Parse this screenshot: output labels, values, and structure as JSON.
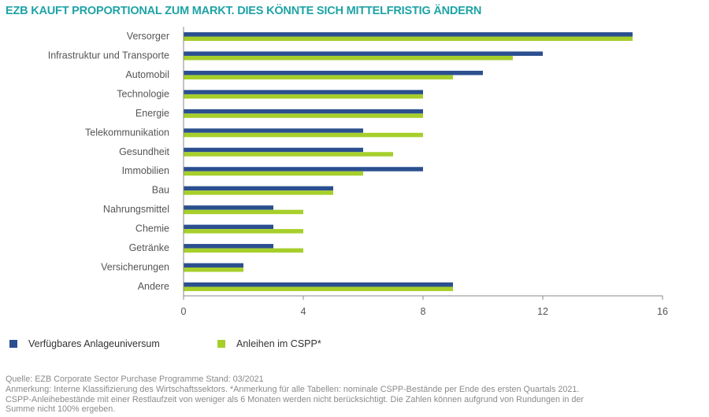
{
  "chart_data": {
    "type": "bar",
    "orientation": "horizontal",
    "title": "EZB KAUFT PROPORTIONAL ZUM MARKT. DIES KÖNNTE SICH MITTELFRISTIG ÄNDERN",
    "categories": [
      "Versorger",
      "Infrastruktur und Transporte",
      "Automobil",
      "Technologie",
      "Energie",
      "Telekommunikation",
      "Gesundheit",
      "Immobilien",
      "Bau",
      "Nahrungsmittel",
      "Chemie",
      "Getränke",
      "Versicherungen",
      "Andere"
    ],
    "series": [
      {
        "name": "Verfügbares Anlageuniversum",
        "color": "#2b4f8f",
        "values": [
          15,
          12,
          10,
          8,
          8,
          6,
          6,
          8,
          5,
          3,
          3,
          3,
          2,
          9
        ]
      },
      {
        "name": "Anleihen im CSPP*",
        "color": "#a6cf2b",
        "values": [
          15,
          11,
          9,
          8,
          8,
          8,
          7,
          6,
          5,
          4,
          4,
          4,
          2,
          9
        ]
      }
    ],
    "xlim": [
      0,
      16
    ],
    "xticks": [
      "0",
      "4",
      "8",
      "12",
      "16"
    ],
    "grid": false,
    "legend_placement": "bottom-left",
    "title_color": "#1fa3a6"
  },
  "footer": {
    "source": "Quelle: EZB Corporate Sector Purchase Programme Stand: 03/2021",
    "note1": "Anmerkung: Interne Klassifizierung des Wirtschaftssektors. *Anmerkung für alle Tabellen: nominale CSPP-Bestände per Ende des ersten Quartals 2021.",
    "note2": "CSPP-Anleihebestände mit einer Restlaufzeit von weniger als 6 Monaten werden nicht berücksichtigt. Die Zahlen können aufgrund von Rundungen in der",
    "note3": "Summe nicht 100% ergeben."
  }
}
